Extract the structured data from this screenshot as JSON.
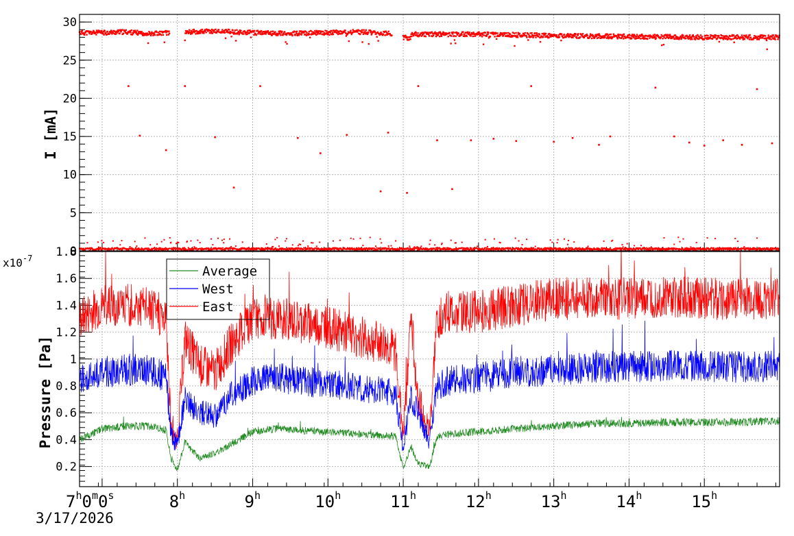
{
  "date_label": "3/17/2026",
  "x_axis": {
    "ticks": [
      {
        "hour": 7,
        "label": "7",
        "sup": "h",
        "extra": "0m0s"
      },
      {
        "hour": 8,
        "label": "8",
        "sup": "h"
      },
      {
        "hour": 9,
        "label": "9",
        "sup": "h"
      },
      {
        "hour": 10,
        "label": "10",
        "sup": "h"
      },
      {
        "hour": 11,
        "label": "11",
        "sup": "h"
      },
      {
        "hour": 12,
        "label": "12",
        "sup": "h"
      },
      {
        "hour": 13,
        "label": "13",
        "sup": "h"
      },
      {
        "hour": 14,
        "label": "14",
        "sup": "h"
      },
      {
        "hour": 15,
        "label": "15",
        "sup": "h"
      }
    ],
    "range_hours": [
      6.7,
      16.0
    ]
  },
  "chart_data": [
    {
      "type": "scatter",
      "ylabel": "I [mA]",
      "ylim": [
        0,
        31
      ],
      "yticks": [
        0,
        5,
        10,
        15,
        20,
        25,
        30
      ],
      "grid": true,
      "color": "#ff0000",
      "series": [
        {
          "segments": [
            {
              "x": [
                6.7,
                7.0,
                7.3,
                7.6,
                7.9
              ],
              "y": [
                28.6,
                28.6,
                28.7,
                28.5,
                28.6
              ]
            },
            {
              "x": [
                8.1,
                8.5,
                9.0,
                9.5,
                10.0,
                10.4,
                10.85
              ],
              "y": [
                28.7,
                28.8,
                28.6,
                28.5,
                28.6,
                28.7,
                28.5
              ]
            },
            {
              "x": [
                11.0,
                11.1
              ],
              "y": [
                28.0,
                27.8
              ]
            },
            {
              "x": [
                11.1,
                12.0,
                13.0,
                14.0,
                15.0,
                16.0
              ],
              "y": [
                28.4,
                28.4,
                28.2,
                28.1,
                28.0,
                28.0
              ]
            }
          ],
          "outliers_x": [
            7.35,
            7.5,
            7.85,
            8.1,
            8.5,
            8.75,
            9.1,
            9.6,
            9.9,
            10.25,
            10.7,
            10.8,
            11.05,
            11.2,
            11.45,
            11.65,
            11.9,
            12.2,
            12.5,
            12.7,
            13.0,
            13.25,
            13.6,
            13.75,
            14.35,
            14.6,
            14.8,
            15.0,
            15.25,
            15.5,
            15.7,
            15.9
          ],
          "outliers_y": [
            21.6,
            15.1,
            13.2,
            21.6,
            14.9,
            8.3,
            21.6,
            14.8,
            12.8,
            15.2,
            7.8,
            15.5,
            7.6,
            21.6,
            14.5,
            8.1,
            14.5,
            14.7,
            14.4,
            21.6,
            14.3,
            14.8,
            13.9,
            15.0,
            21.4,
            15.0,
            14.2,
            13.8,
            14.5,
            13.9,
            21.2,
            14.1
          ],
          "baseline_y": 0.5
        }
      ]
    },
    {
      "type": "line",
      "ylabel": "Pressure [Pa]",
      "y_exponent_label": "x10",
      "y_exponent_power": "-7",
      "ylim": [
        0.05,
        1.8
      ],
      "yticks": [
        0.2,
        0.4,
        0.6,
        0.8,
        1,
        1.2,
        1.4,
        1.6,
        1.8
      ],
      "ytick_labels": [
        "0.2",
        "0.4",
        "0.6",
        "0.8",
        "1",
        "1.2",
        "1.4",
        "1.6",
        "1.8"
      ],
      "grid": true,
      "legend": {
        "position": "top-left"
      },
      "x": [
        6.7,
        7.0,
        7.3,
        7.6,
        7.85,
        7.92,
        8.0,
        8.1,
        8.3,
        8.5,
        8.7,
        9.0,
        9.3,
        9.6,
        9.9,
        10.2,
        10.5,
        10.8,
        10.9,
        11.0,
        11.1,
        11.2,
        11.35,
        11.45,
        11.6,
        12.0,
        12.5,
        13.0,
        13.5,
        14.0,
        14.5,
        15.0,
        15.5,
        16.0
      ],
      "series": [
        {
          "name": "Average",
          "color": "#228b22",
          "values": [
            0.4,
            0.48,
            0.5,
            0.5,
            0.47,
            0.25,
            0.18,
            0.38,
            0.26,
            0.3,
            0.36,
            0.46,
            0.48,
            0.47,
            0.46,
            0.45,
            0.44,
            0.43,
            0.42,
            0.18,
            0.35,
            0.22,
            0.2,
            0.42,
            0.44,
            0.46,
            0.48,
            0.5,
            0.52,
            0.52,
            0.53,
            0.53,
            0.53,
            0.54
          ]
        },
        {
          "name": "West",
          "color": "#0000ff",
          "values": [
            0.85,
            0.9,
            0.92,
            0.92,
            0.86,
            0.42,
            0.38,
            0.7,
            0.6,
            0.58,
            0.72,
            0.84,
            0.86,
            0.84,
            0.82,
            0.8,
            0.78,
            0.76,
            0.74,
            0.35,
            0.7,
            0.6,
            0.38,
            0.8,
            0.84,
            0.86,
            0.9,
            0.92,
            0.94,
            0.94,
            0.95,
            0.95,
            0.94,
            0.95
          ]
        },
        {
          "name": "East",
          "color": "#ff0000",
          "values": [
            1.3,
            1.4,
            1.4,
            1.4,
            1.3,
            0.5,
            0.42,
            1.15,
            0.95,
            0.9,
            1.1,
            1.3,
            1.3,
            1.28,
            1.25,
            1.2,
            1.15,
            1.1,
            1.05,
            0.42,
            1.3,
            0.7,
            0.45,
            1.3,
            1.35,
            1.35,
            1.4,
            1.45,
            1.45,
            1.45,
            1.47,
            1.45,
            1.45,
            1.45
          ]
        }
      ]
    }
  ]
}
